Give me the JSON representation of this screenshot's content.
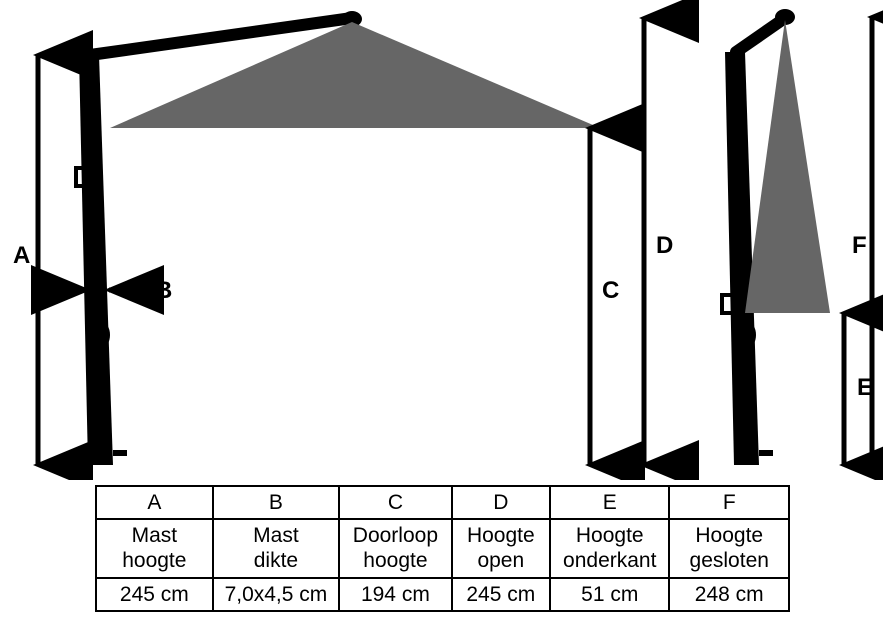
{
  "diagram": {
    "canopy_color": "#666666",
    "mast_color": "#000000",
    "stroke_color": "#000000",
    "labels": {
      "A": "A",
      "B": "B",
      "C": "C",
      "D": "D",
      "E": "E",
      "F": "F"
    },
    "label_fontsize": 24,
    "arrow_width": 5
  },
  "table": {
    "columns": [
      {
        "key": "A",
        "label": "Mast hoogte",
        "value": "245 cm"
      },
      {
        "key": "B",
        "label": "Mast dikte",
        "value": "7,0x4,5 cm"
      },
      {
        "key": "C",
        "label": "Doorloop hoogte",
        "value": "194 cm"
      },
      {
        "key": "D",
        "label": "Hoogte open",
        "value": "245 cm"
      },
      {
        "key": "E",
        "label": "Hoogte onderkant",
        "value": "51 cm"
      },
      {
        "key": "F",
        "label": "Hoogte gesloten",
        "value": "248 cm"
      }
    ],
    "border_color": "#000000",
    "font_size": 21
  }
}
